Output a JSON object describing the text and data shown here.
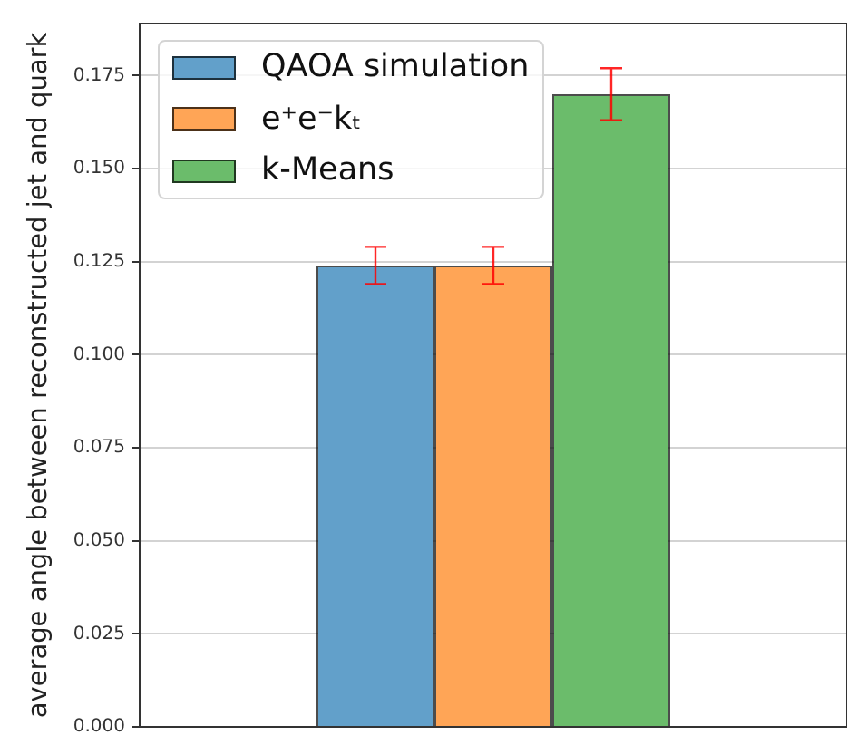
{
  "chart_data": {
    "type": "bar",
    "ylabel": "average angle between reconstructed jet and quark",
    "categories": [
      null
    ],
    "series": [
      {
        "name": "QAOA simulation",
        "color": "#62a0ca",
        "values": [
          0.124
        ],
        "errors": [
          0.005
        ]
      },
      {
        "name": "e⁺e⁻kₜ",
        "color": "#ffa556",
        "values": [
          0.124
        ],
        "errors": [
          0.005
        ]
      },
      {
        "name": "k-Means",
        "color": "#6bbc6b",
        "values": [
          0.17
        ],
        "errors": [
          0.007
        ]
      }
    ],
    "ylim": [
      0,
      0.189
    ],
    "yticks": [
      {
        "value": 0,
        "label": "0.000"
      },
      0.025,
      {
        "value": 0.05,
        "label": "0.050"
      },
      0.075,
      {
        "value": 0.1,
        "label": "0.100"
      },
      0.125,
      {
        "value": 0.15,
        "label": "0.150"
      },
      0.175
    ],
    "grid": "y",
    "legend": "top left"
  }
}
